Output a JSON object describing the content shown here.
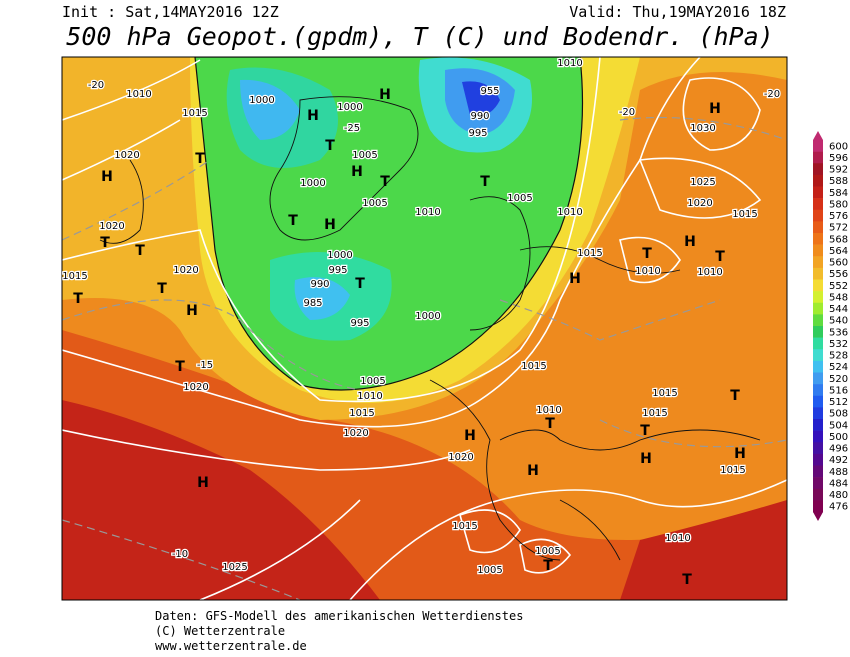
{
  "header": {
    "init": "Init : Sat,14MAY2016 12Z",
    "valid": "Valid: Thu,19MAY2016 18Z",
    "title": "500 hPa Geopot.(gpdm), T (C) und Bodendr. (hPa)"
  },
  "colorbar": {
    "ticks": [
      600,
      596,
      592,
      588,
      584,
      580,
      576,
      572,
      568,
      564,
      560,
      556,
      552,
      548,
      544,
      540,
      536,
      532,
      528,
      524,
      520,
      516,
      512,
      508,
      504,
      500,
      496,
      492,
      488,
      484,
      480,
      476
    ],
    "colors": [
      "#c02a70",
      "#b01c4c",
      "#a01424",
      "#b01818",
      "#c42018",
      "#d63018",
      "#e04418",
      "#e85c18",
      "#ee7418",
      "#f08c1c",
      "#f2a424",
      "#f2bc2c",
      "#f4dc34",
      "#d4f030",
      "#a0ec30",
      "#60dc40",
      "#30cc5c",
      "#30dca0",
      "#40dcd0",
      "#40c0f0",
      "#409cf0",
      "#307cf0",
      "#205cf0",
      "#203ce0",
      "#2420cc",
      "#3410bc",
      "#4410a4",
      "#540890",
      "#640878",
      "#700868",
      "#780858",
      "#800050"
    ]
  },
  "map_labels": [
    "1010",
    "1000",
    "H",
    "955",
    "990",
    "995",
    "1000",
    "-25",
    "H",
    "T",
    "1005",
    "H",
    "1000",
    "T",
    "1005",
    "1010",
    "T",
    "1005",
    "1010",
    "H",
    "1030",
    "1025",
    "1020",
    "1015",
    "1020",
    "H",
    "T",
    "1015",
    "1010",
    "1020",
    "T",
    "T",
    "1015",
    "T",
    "1020",
    "T",
    "H",
    "T",
    "H",
    "1000",
    "995",
    "990",
    "985",
    "T",
    "995",
    "1000",
    "T",
    "1020",
    "1005",
    "1010",
    "1015",
    "1020",
    "H",
    "1020",
    "T",
    "1010",
    "1015",
    "H",
    "H",
    "T",
    "1015",
    "1015",
    "H",
    "1015",
    "T",
    "H",
    "1015",
    "T",
    "1010",
    "T",
    "H",
    "1010",
    "H",
    "1015",
    "1005",
    "T",
    "1005",
    "1010",
    "T",
    "-10",
    "1025",
    "-15",
    "-20",
    "-20",
    "-20"
  ],
  "footer": {
    "line1": "Daten: GFS-Modell des amerikanischen Wetterdienstes",
    "line2": "(C) Wetterzentrale",
    "line3": "www.wetterzentrale.de"
  }
}
